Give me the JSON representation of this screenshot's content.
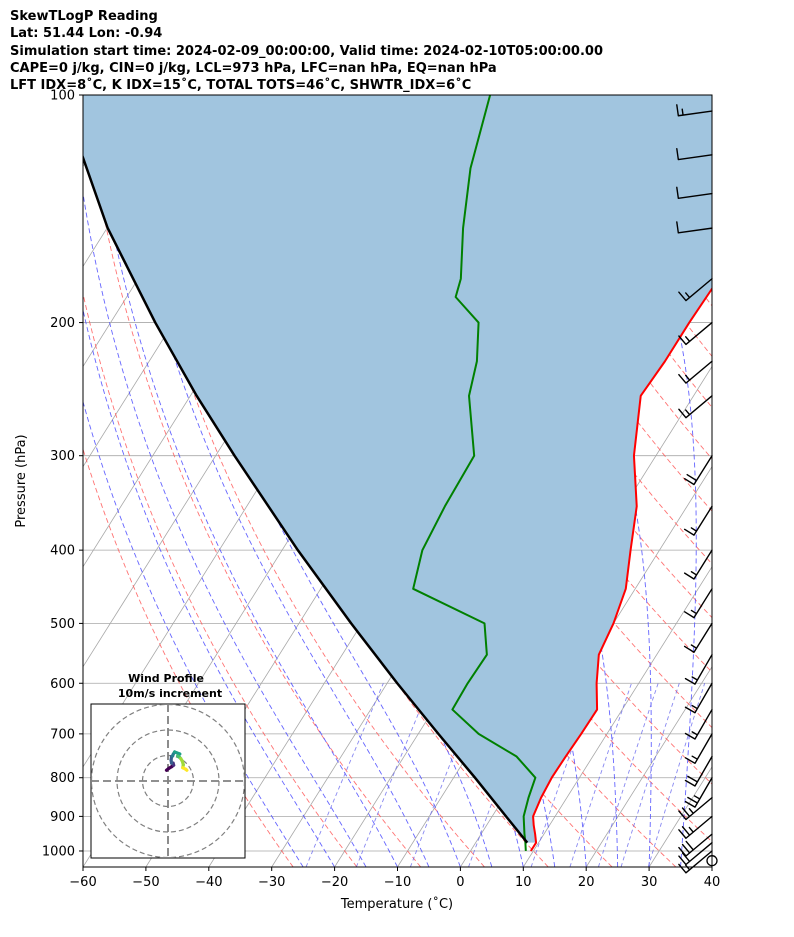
{
  "header": {
    "lines": [
      "SkewTLogP Reading",
      "Lat: 51.44   Lon: -0.94",
      "Simulation start time: 2024-02-09_00:00:00, Valid time: 2024-02-10T05:00:00.00",
      "CAPE=0 j/kg, CIN=0 j/kg, LCL=973 hPa, LFC=nan hPa, EQ=nan hPa",
      "LFT IDX=8˚C, K IDX=15˚C, TOTAL TOTS=46˚C, SHWTR_IDX=6˚C"
    ]
  },
  "chart_data": {
    "type": "line",
    "subtype": "skew-t log-p",
    "xlabel": "Temperature (˚C)",
    "ylabel": "Pressure (hPa)",
    "xlim": [
      -60,
      40
    ],
    "ylim": [
      1050,
      100
    ],
    "y_scale": "log",
    "x_ticks": [
      -60,
      -50,
      -40,
      -30,
      -20,
      -10,
      0,
      10,
      20,
      30,
      40
    ],
    "y_ticks": [
      100,
      200,
      300,
      400,
      500,
      600,
      700,
      800,
      900,
      1000
    ],
    "colors": {
      "temperature": "#ff0000",
      "dewpoint": "#008000",
      "parcel": "#000000",
      "cape_shading": "#a1c5df",
      "dry_adiabats": "#ff5a5a",
      "moist_adiabats": "#4a4aff",
      "mixing_ratio": "#6a6aee",
      "isotherms": "#a8a8a8",
      "hodograph_grid": "#808080"
    },
    "series": [
      {
        "key": "temperature",
        "points": [
          [
            1000,
            9.6
          ],
          [
            975,
            9.6
          ],
          [
            950,
            8.6
          ],
          [
            925,
            7.5
          ],
          [
            900,
            6.5
          ],
          [
            850,
            5.9
          ],
          [
            800,
            5.6
          ],
          [
            750,
            5.7
          ],
          [
            700,
            5.9
          ],
          [
            650,
            6.0
          ],
          [
            600,
            3.3
          ],
          [
            550,
            0.8
          ],
          [
            500,
            0.0
          ],
          [
            450,
            -1.5
          ],
          [
            400,
            -4.6
          ],
          [
            350,
            -8.0
          ],
          [
            300,
            -13.5
          ],
          [
            250,
            -18.4
          ],
          [
            225,
            -18.0
          ],
          [
            200,
            -18.0
          ],
          [
            175,
            -17.7
          ],
          [
            150,
            -14.1
          ],
          [
            125,
            -16.5
          ],
          [
            100,
            -17.5
          ]
        ]
      },
      {
        "key": "dewpoint",
        "points": [
          [
            1000,
            8.8
          ],
          [
            975,
            7.9
          ],
          [
            950,
            6.9
          ],
          [
            900,
            5.0
          ],
          [
            850,
            3.9
          ],
          [
            800,
            3.0
          ],
          [
            750,
            -2.1
          ],
          [
            700,
            -10.4
          ],
          [
            650,
            -17.0
          ],
          [
            600,
            -17.2
          ],
          [
            550,
            -17.0
          ],
          [
            500,
            -20.5
          ],
          [
            450,
            -35.3
          ],
          [
            400,
            -37.7
          ],
          [
            350,
            -38.5
          ],
          [
            300,
            -38.9
          ],
          [
            250,
            -45.7
          ],
          [
            225,
            -47.9
          ],
          [
            200,
            -51.5
          ],
          [
            185,
            -57.7
          ],
          [
            175,
            -58.7
          ],
          [
            150,
            -63.4
          ],
          [
            125,
            -68.2
          ],
          [
            100,
            -72.4
          ]
        ]
      },
      {
        "key": "parcel",
        "points": [
          [
            975,
            8.2
          ],
          [
            900,
            2.2
          ],
          [
            800,
            -6.6
          ],
          [
            700,
            -16.8
          ],
          [
            600,
            -28.4
          ],
          [
            500,
            -41.7
          ],
          [
            400,
            -57.5
          ],
          [
            300,
            -77.0
          ],
          [
            250,
            -89.0
          ],
          [
            200,
            -102.9
          ],
          [
            150,
            -119.9
          ],
          [
            120,
            -131.3
          ],
          [
            100,
            -139.4
          ]
        ]
      }
    ],
    "wind_barbs": {
      "color": "#000000",
      "levels": [
        {
          "p": 1030,
          "speed": 0
        },
        {
          "p": 1000,
          "speed": 15
        },
        {
          "p": 975,
          "speed": 20
        },
        {
          "p": 950,
          "speed": 30
        },
        {
          "p": 900,
          "speed": 25
        },
        {
          "p": 850,
          "speed": 25
        },
        {
          "p": 800,
          "speed": 25
        },
        {
          "p": 750,
          "speed": 20
        },
        {
          "p": 700,
          "speed": 15
        },
        {
          "p": 650,
          "speed": 15
        },
        {
          "p": 600,
          "speed": 15
        },
        {
          "p": 550,
          "speed": 15
        },
        {
          "p": 500,
          "speed": 15
        },
        {
          "p": 450,
          "speed": 15
        },
        {
          "p": 400,
          "speed": 15
        },
        {
          "p": 350,
          "speed": 15
        },
        {
          "p": 300,
          "speed": 20
        },
        {
          "p": 250,
          "speed": 15
        },
        {
          "p": 225,
          "speed": 15
        },
        {
          "p": 200,
          "speed": 15
        },
        {
          "p": 175,
          "speed": 15
        },
        {
          "p": 150,
          "speed": 10
        },
        {
          "p": 135,
          "speed": 10
        },
        {
          "p": 120,
          "speed": 10
        },
        {
          "p": 105,
          "speed": 15
        }
      ]
    },
    "hodograph": {
      "title": "Wind Profile",
      "subtitle": "10m/s increment",
      "rings": [
        10,
        20,
        30
      ],
      "points": [
        [
          -0.6,
          4.2
        ],
        [
          0.4,
          5.0
        ],
        [
          1.4,
          5.6
        ],
        [
          2.2,
          6.2
        ],
        [
          2.0,
          7.0
        ],
        [
          1.4,
          7.0
        ],
        [
          1.2,
          8.2
        ],
        [
          1.4,
          9.6
        ],
        [
          1.8,
          9.8
        ],
        [
          2.0,
          10.4
        ],
        [
          2.6,
          11.4
        ],
        [
          3.6,
          11.0
        ],
        [
          4.6,
          10.6
        ],
        [
          3.8,
          9.8
        ],
        [
          4.4,
          9.4
        ],
        [
          5.0,
          8.8
        ],
        [
          5.6,
          7.8
        ],
        [
          6.0,
          6.4
        ],
        [
          5.8,
          5.2
        ],
        [
          7.0,
          4.6
        ],
        [
          7.4,
          4.2
        ]
      ]
    }
  }
}
